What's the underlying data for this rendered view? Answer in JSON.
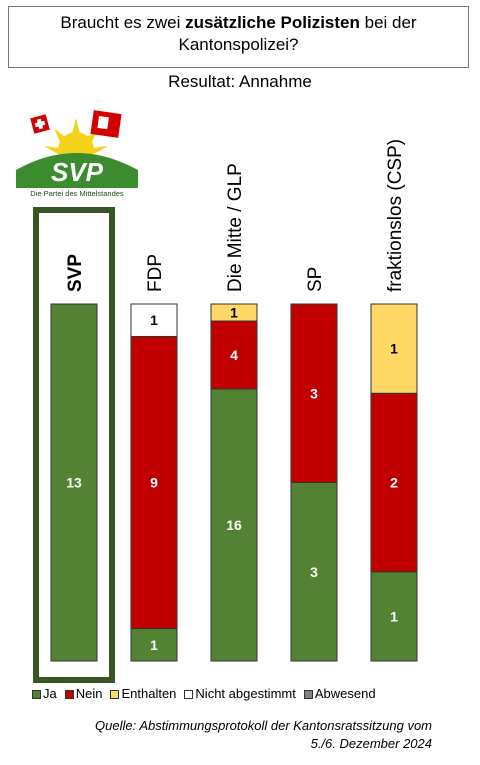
{
  "title": {
    "prefix": "Braucht es zwei ",
    "bold": "zusätzliche Polizisten",
    "suffix": " bei der",
    "line2": "Kantonspolizei?"
  },
  "result": "Resultat: Annahme",
  "logo": {
    "name": "SVP",
    "tagline": "Die Partei des Mittelstandes"
  },
  "colors": {
    "ja": "#548235",
    "nein": "#c00000",
    "enthalten": "#ffd966",
    "nicht_abgestimmt": "#ffffff",
    "abwesend": "#808080",
    "highlight_frame": "#375623"
  },
  "chart_data": {
    "type": "bar",
    "stacked": true,
    "normalized": true,
    "categories": [
      "SVP",
      "FDP",
      "Die Mitte / GLP",
      "SP",
      "fraktionslos (CSP)"
    ],
    "highlight": "SVP",
    "series": [
      {
        "name": "Ja",
        "key": "ja",
        "values": [
          13,
          1,
          16,
          3,
          1
        ]
      },
      {
        "name": "Nein",
        "key": "nein",
        "values": [
          0,
          9,
          4,
          3,
          2
        ]
      },
      {
        "name": "Enthalten",
        "key": "enthalten",
        "values": [
          0,
          0,
          1,
          0,
          1
        ]
      },
      {
        "name": "Nicht abgestimmt",
        "key": "nicht_abgestimmt",
        "values": [
          0,
          1,
          0,
          0,
          0
        ]
      },
      {
        "name": "Abwesend",
        "key": "abwesend",
        "values": [
          0,
          0,
          0,
          0,
          0
        ]
      }
    ]
  },
  "source": {
    "line1": "Quelle: Abstimmungsprotokoll der Kantonsratssitzung vom",
    "line2": "5./6. Dezember 2024"
  }
}
